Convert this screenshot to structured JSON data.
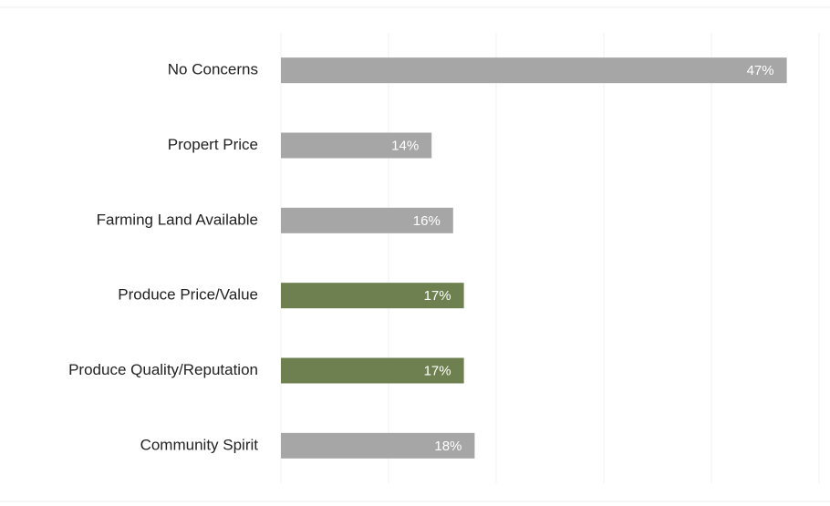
{
  "chart_data": {
    "type": "barh",
    "categories": [
      "No Concerns",
      "Propert Price",
      "Farming Land Available",
      "Produce Price/Value",
      "Produce Quality/Reputation",
      "Community Spirit"
    ],
    "values": [
      47,
      14,
      16,
      17,
      17,
      18
    ],
    "value_labels": [
      "47%",
      "14%",
      "16%",
      "17%",
      "17%",
      "18%"
    ],
    "colors": [
      "#a6a6a6",
      "#a6a6a6",
      "#a6a6a6",
      "#6f8050",
      "#6f8050",
      "#a6a6a6"
    ],
    "xlim": [
      0,
      50
    ],
    "xticks": [
      0,
      10,
      20,
      30,
      40,
      50
    ],
    "grid": true
  }
}
